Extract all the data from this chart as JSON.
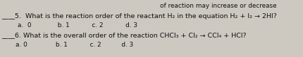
{
  "background_color": "#cdc9c0",
  "top_text": "of reaction may increase or decrease",
  "q5_line": "____5.  What is the reaction order of the reactant H₂ in the equation H₂ + I₂ → 2HI?",
  "q5_choices": "        a.  0             b. 1           c. 2           d. 3",
  "q6_line": "____6. What is the overall order of the reaction CHCl₃ + Cl₂ → CCl₄ + HCl?",
  "q6_choices": "       a. 0              b. 1           c. 2          d. 3",
  "font_size_main": 6.8,
  "font_size_choices": 6.4,
  "font_size_top": 6.4,
  "text_color": "#111111"
}
